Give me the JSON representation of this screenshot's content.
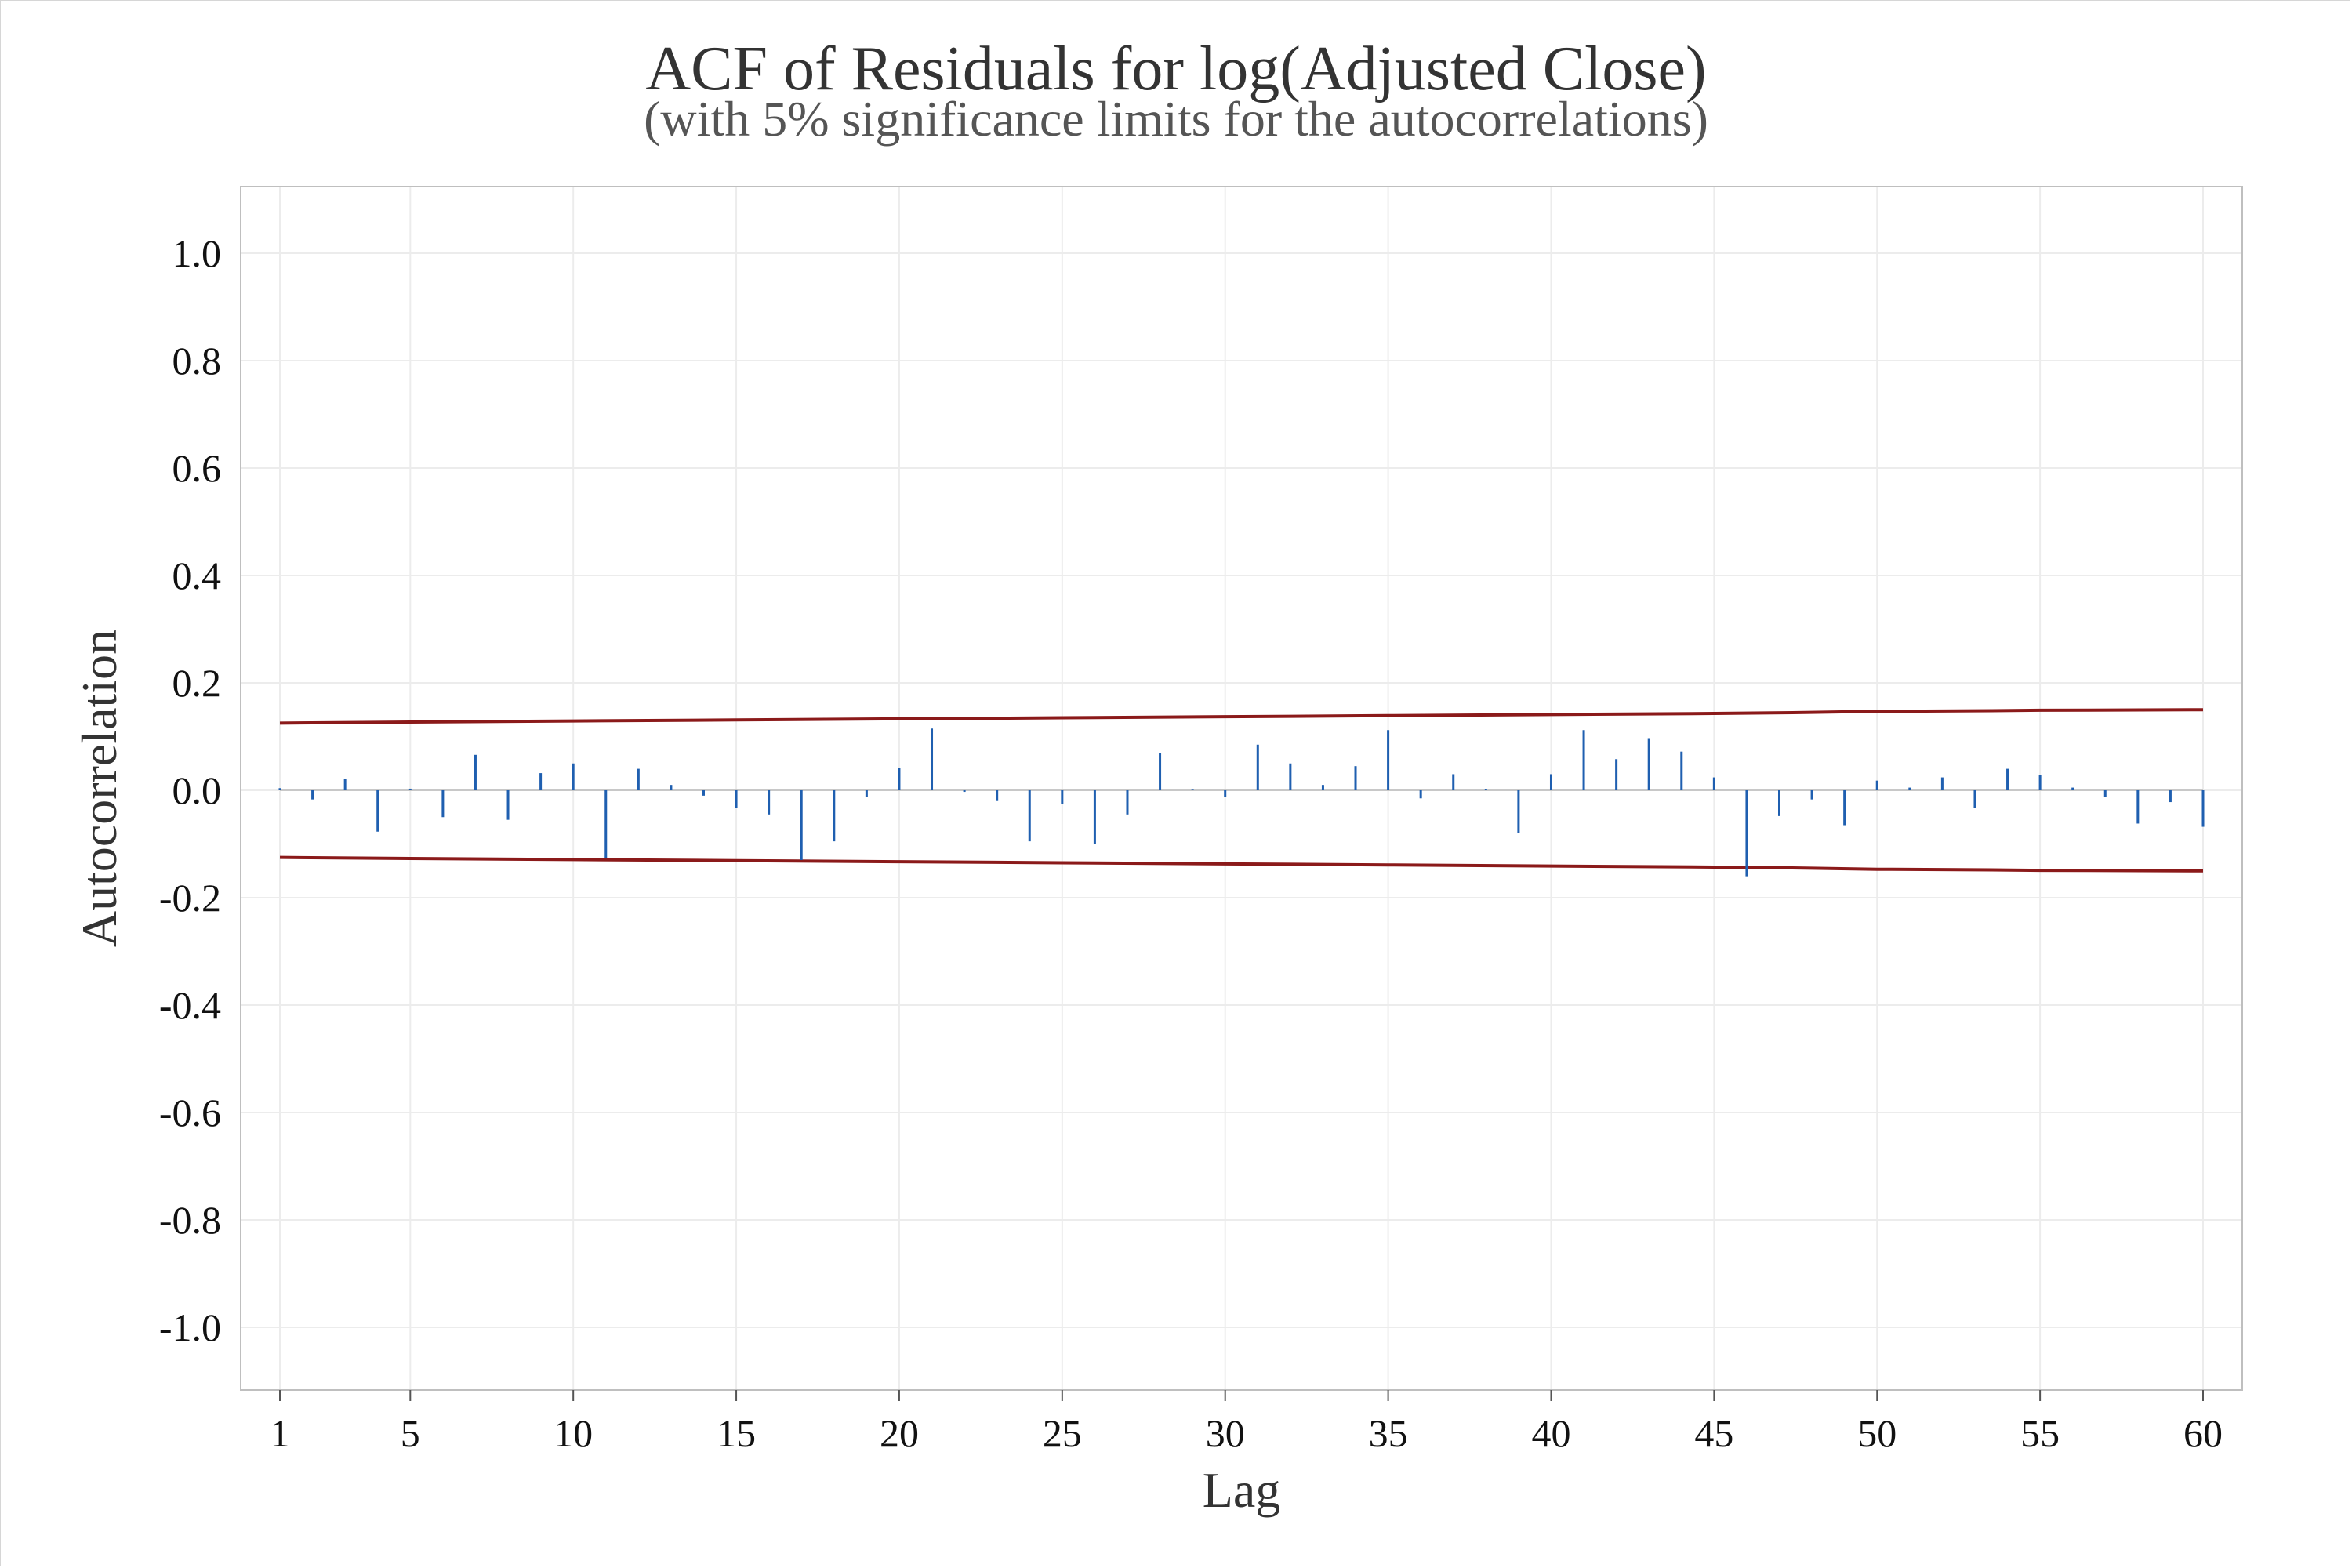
{
  "chart_data": {
    "type": "bar",
    "title": "ACF of Residuals for log(Adjusted Close)",
    "subtitle": "(with 5% significance limits for the autocorrelations)",
    "xlabel": "Lag",
    "ylabel": "Autocorrelation",
    "xlim": [
      1,
      60
    ],
    "ylim": [
      -1.0,
      1.0
    ],
    "x_ticks": [
      "1",
      "5",
      "10",
      "15",
      "20",
      "25",
      "30",
      "35",
      "40",
      "45",
      "50",
      "55",
      "60"
    ],
    "y_ticks": [
      "1.0",
      "0.8",
      "0.6",
      "0.4",
      "0.2",
      "0.0",
      "-0.2",
      "-0.4",
      "-0.6",
      "-0.8",
      "-1.0"
    ],
    "grid": true,
    "legend": "none",
    "colors": {
      "bars": "#1f5fb0",
      "limits": "#8b1a1a",
      "grid": "#ececec",
      "frame": "#bfbfbf"
    },
    "series": [
      {
        "lags": [
          1,
          2,
          3,
          4,
          5,
          6,
          7,
          8,
          9,
          10,
          11,
          12,
          13,
          14,
          15,
          16,
          17,
          18,
          19,
          20,
          21,
          22,
          23,
          24,
          25,
          26,
          27,
          28,
          29,
          30,
          31,
          32,
          33,
          34,
          35,
          36,
          37,
          38,
          39,
          40,
          41,
          42,
          43,
          44,
          45,
          46,
          47,
          48,
          49,
          50,
          51,
          52,
          53,
          54,
          55,
          56,
          57,
          58,
          59,
          60
        ],
        "values": [
          0.004,
          -0.017,
          0.021,
          -0.077,
          0.003,
          -0.05,
          0.066,
          -0.055,
          0.032,
          0.05,
          -0.127,
          0.04,
          0.01,
          -0.01,
          -0.033,
          -0.045,
          -0.13,
          -0.095,
          -0.012,
          0.042,
          0.115,
          -0.003,
          -0.02,
          -0.095,
          -0.025,
          -0.1,
          -0.045,
          0.07,
          0.001,
          -0.012,
          0.085,
          0.05,
          0.01,
          0.045,
          0.112,
          -0.015,
          0.03,
          0.002,
          -0.08,
          0.03,
          0.112,
          0.058,
          0.097,
          0.072,
          0.024,
          -0.16,
          -0.048,
          -0.017,
          -0.065,
          0.018,
          0.005,
          0.024,
          -0.033,
          0.04,
          0.028,
          0.005,
          -0.012,
          -0.062,
          -0.022,
          -0.068
        ]
      }
    ],
    "upper_limit": [
      0.125,
      0.127,
      0.129,
      0.131,
      0.133,
      0.135,
      0.137,
      0.139,
      0.141,
      0.143,
      0.145,
      0.147,
      0.148,
      0.149,
      0.15
    ],
    "lower_limit": [
      -0.125,
      -0.127,
      -0.129,
      -0.131,
      -0.133,
      -0.135,
      -0.137,
      -0.139,
      -0.141,
      -0.143,
      -0.145,
      -0.147,
      -0.148,
      -0.149,
      -0.15
    ],
    "limit_lags": [
      1,
      5,
      10,
      15,
      20,
      25,
      30,
      35,
      40,
      45,
      48,
      50,
      53,
      55,
      60
    ]
  }
}
